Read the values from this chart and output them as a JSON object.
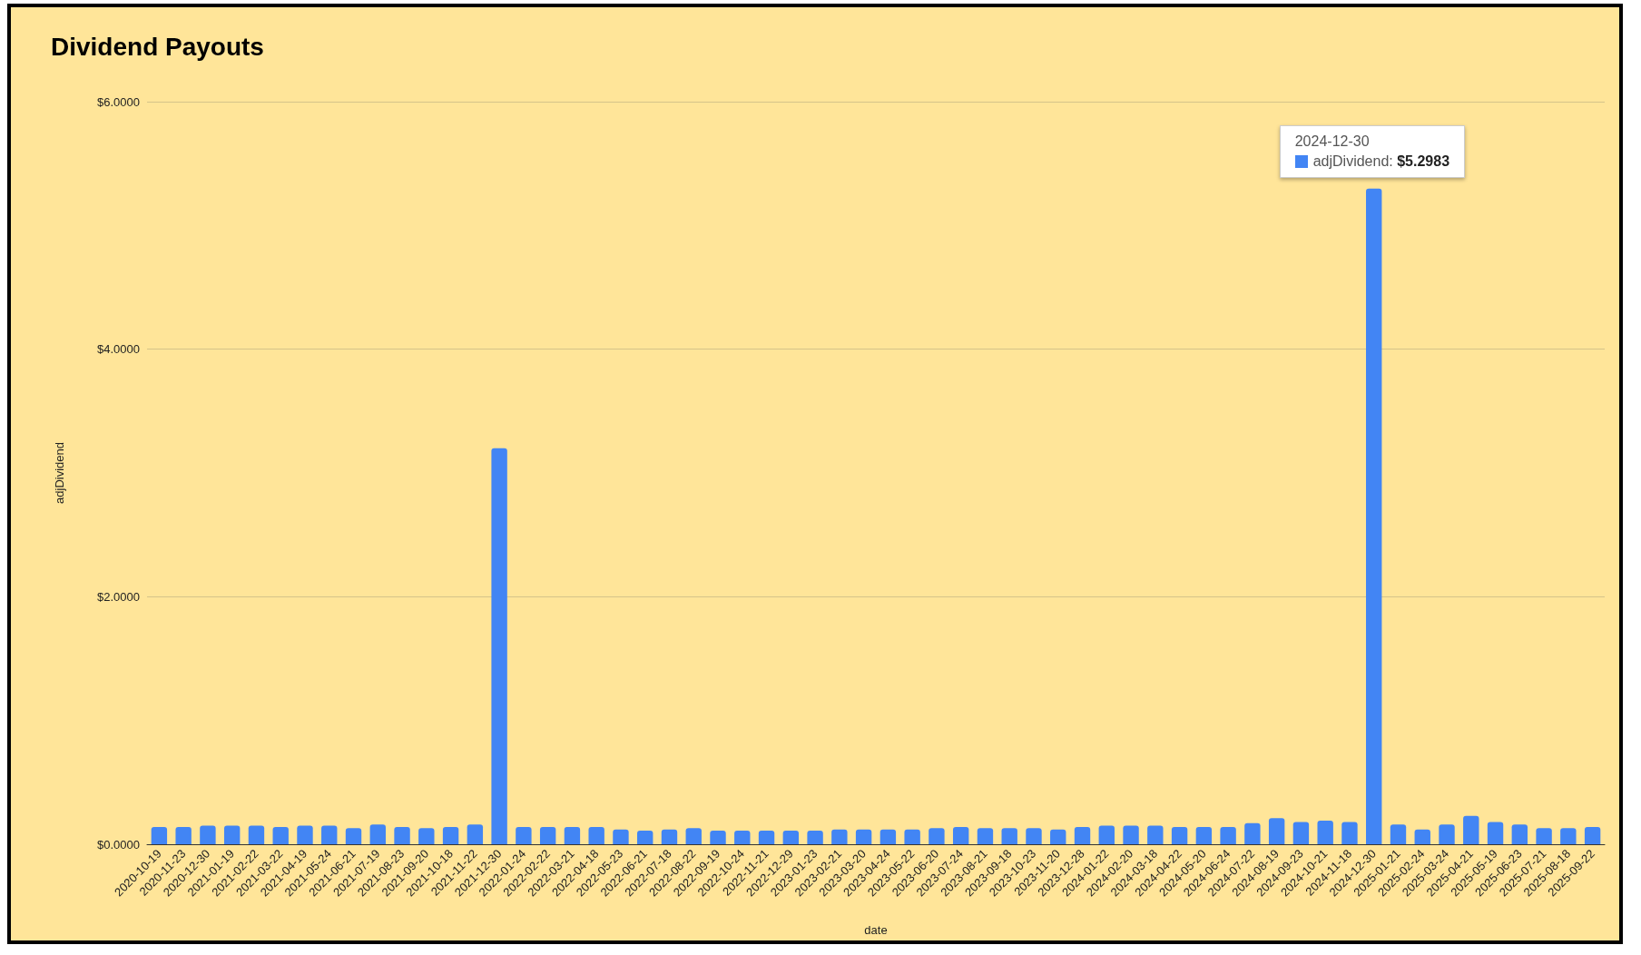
{
  "chart_data": {
    "type": "bar",
    "title": "Dividend Payouts",
    "xlabel": "date",
    "ylabel": "adjDividend",
    "categories": [
      "2020-10-19",
      "2020-11-23",
      "2020-12-30",
      "2021-01-19",
      "2021-02-22",
      "2021-03-22",
      "2021-04-19",
      "2021-05-24",
      "2021-06-21",
      "2021-07-19",
      "2021-08-23",
      "2021-09-20",
      "2021-10-18",
      "2021-11-22",
      "2021-12-30",
      "2022-01-24",
      "2022-02-22",
      "2022-03-21",
      "2022-04-18",
      "2022-05-23",
      "2022-06-21",
      "2022-07-18",
      "2022-08-22",
      "2022-09-19",
      "2022-10-24",
      "2022-11-21",
      "2022-12-29",
      "2023-01-23",
      "2023-02-21",
      "2023-03-20",
      "2023-04-24",
      "2023-05-22",
      "2023-06-20",
      "2023-07-24",
      "2023-08-21",
      "2023-09-18",
      "2023-10-23",
      "2023-11-20",
      "2023-12-28",
      "2024-01-22",
      "2024-02-20",
      "2024-03-18",
      "2024-04-22",
      "2024-05-20",
      "2024-06-24",
      "2024-07-22",
      "2024-08-19",
      "2024-09-23",
      "2024-10-21",
      "2024-11-18",
      "2024-12-30",
      "2025-01-21",
      "2025-02-24",
      "2025-03-24",
      "2025-04-21",
      "2025-05-19",
      "2025-06-23",
      "2025-07-21",
      "2025-08-18",
      "2025-09-22"
    ],
    "series": [
      {
        "color": "#4285f4",
        "values": [
          0.14,
          0.14,
          0.15,
          0.15,
          0.15,
          0.14,
          0.15,
          0.15,
          0.13,
          0.16,
          0.14,
          0.13,
          0.14,
          0.16,
          3.2,
          0.14,
          0.14,
          0.14,
          0.14,
          0.12,
          0.11,
          0.12,
          0.13,
          0.11,
          0.11,
          0.11,
          0.11,
          0.11,
          0.12,
          0.12,
          0.12,
          0.12,
          0.13,
          0.14,
          0.13,
          0.13,
          0.13,
          0.12,
          0.14,
          0.15,
          0.15,
          0.15,
          0.14,
          0.14,
          0.14,
          0.17,
          0.21,
          0.18,
          0.19,
          0.18,
          5.2983,
          0.16,
          0.12,
          0.16,
          0.23,
          0.18,
          0.16,
          0.13,
          0.13,
          0.14
        ]
      }
    ],
    "ylim": [
      0,
      6
    ],
    "yticks": [
      {
        "value": 0,
        "label": "$0.0000"
      },
      {
        "value": 2,
        "label": "$2.0000"
      },
      {
        "value": 4,
        "label": "$4.0000"
      },
      {
        "value": 6,
        "label": "$6.0000"
      }
    ],
    "grid": "y",
    "annotations": [
      {
        "text": "2024-12-30",
        "x": "2024-12-30",
        "y": 5.2983
      },
      "adjDividend: $5.2983"
    ]
  }
}
